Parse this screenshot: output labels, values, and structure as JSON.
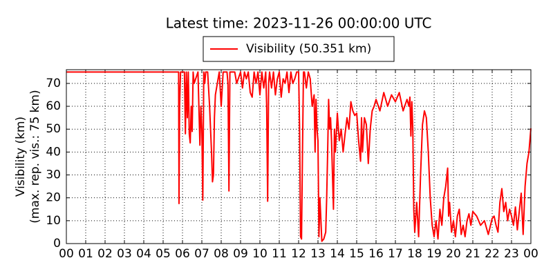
{
  "chart_data": {
    "type": "line",
    "title": "Latest time: 2023-11-26 00:00:00 UTC",
    "y_label_lines": [
      "Visibility (km)",
      "(max. rep. vis.: 75 km)"
    ],
    "legend_position": "upper center outside",
    "grid": true,
    "xlim": [
      0,
      24
    ],
    "ylim": [
      0,
      76
    ],
    "xticks": [
      {
        "value": 0,
        "label": "00"
      },
      {
        "value": 1,
        "label": "01"
      },
      {
        "value": 2,
        "label": "02"
      },
      {
        "value": 3,
        "label": "03"
      },
      {
        "value": 4,
        "label": "04"
      },
      {
        "value": 5,
        "label": "05"
      },
      {
        "value": 6,
        "label": "06"
      },
      {
        "value": 7,
        "label": "07"
      },
      {
        "value": 8,
        "label": "08"
      },
      {
        "value": 9,
        "label": "09"
      },
      {
        "value": 10,
        "label": "10"
      },
      {
        "value": 11,
        "label": "11"
      },
      {
        "value": 12,
        "label": "12"
      },
      {
        "value": 13,
        "label": "13"
      },
      {
        "value": 14,
        "label": "14"
      },
      {
        "value": 15,
        "label": "15"
      },
      {
        "value": 16,
        "label": "16"
      },
      {
        "value": 17,
        "label": "17"
      },
      {
        "value": 18,
        "label": "18"
      },
      {
        "value": 19,
        "label": "19"
      },
      {
        "value": 20,
        "label": "20"
      },
      {
        "value": 21,
        "label": "21"
      },
      {
        "value": 22,
        "label": "22"
      },
      {
        "value": 23,
        "label": "23"
      },
      {
        "value": 24,
        "label": "00"
      }
    ],
    "yticks": [
      0,
      10,
      20,
      30,
      40,
      50,
      60,
      70
    ],
    "x": [
      0,
      5.8,
      5.82,
      5.85,
      5.9,
      6.1,
      6.15,
      6.2,
      6.25,
      6.3,
      6.35,
      6.4,
      6.45,
      6.5,
      6.55,
      6.6,
      6.8,
      6.9,
      6.95,
      7.0,
      7.05,
      7.1,
      7.15,
      7.2,
      7.3,
      7.4,
      7.5,
      7.55,
      7.6,
      7.65,
      7.7,
      7.8,
      7.9,
      8.0,
      8.1,
      8.3,
      8.35,
      8.4,
      8.45,
      8.5,
      8.7,
      8.8,
      9.0,
      9.1,
      9.2,
      9.3,
      9.4,
      9.5,
      9.6,
      9.7,
      9.8,
      9.9,
      10.0,
      10.1,
      10.2,
      10.3,
      10.35,
      10.4,
      10.45,
      10.5,
      10.6,
      10.7,
      10.8,
      10.9,
      11.0,
      11.1,
      11.2,
      11.3,
      11.4,
      11.5,
      11.6,
      11.7,
      11.8,
      11.9,
      12.0,
      12.05,
      12.1,
      12.15,
      12.2,
      12.25,
      12.3,
      12.4,
      12.5,
      12.6,
      12.7,
      12.8,
      12.85,
      12.9,
      12.95,
      13.0,
      13.05,
      13.1,
      13.2,
      13.3,
      13.4,
      13.45,
      13.5,
      13.55,
      13.6,
      13.65,
      13.7,
      13.75,
      13.8,
      13.85,
      13.9,
      14.0,
      14.1,
      14.2,
      14.3,
      14.4,
      14.5,
      14.6,
      14.7,
      14.8,
      14.9,
      15.0,
      15.1,
      15.2,
      15.25,
      15.3,
      15.4,
      15.5,
      15.6,
      15.7,
      15.8,
      15.9,
      16.0,
      16.2,
      16.4,
      16.6,
      16.8,
      17.0,
      17.2,
      17.4,
      17.6,
      17.7,
      17.75,
      17.8,
      17.85,
      17.9,
      17.95,
      18.0,
      18.1,
      18.2,
      18.3,
      18.4,
      18.5,
      18.6,
      18.7,
      18.8,
      18.9,
      19.0,
      19.1,
      19.2,
      19.3,
      19.4,
      19.5,
      19.6,
      19.7,
      19.75,
      19.8,
      19.9,
      20.0,
      20.1,
      20.2,
      20.3,
      20.4,
      20.5,
      20.6,
      20.7,
      20.8,
      20.9,
      21.0,
      21.2,
      21.4,
      21.6,
      21.8,
      22.0,
      22.1,
      22.2,
      22.3,
      22.4,
      22.5,
      22.6,
      22.7,
      22.8,
      22.9,
      23.0,
      23.1,
      23.2,
      23.3,
      23.4,
      23.5,
      23.6,
      23.7,
      23.8,
      23.9,
      24.0
    ],
    "series": [
      {
        "name": "Visibility (50.351 km)",
        "color": "#ff0000",
        "values": [
          75,
          75,
          17.5,
          60,
          75,
          75,
          48,
          75,
          55,
          75,
          48,
          44,
          60,
          49,
          75,
          70,
          75,
          43,
          60,
          50,
          19,
          75,
          70,
          75,
          75,
          60,
          40,
          27,
          30,
          55,
          65,
          70,
          75,
          60,
          75,
          75,
          70,
          23,
          75,
          75,
          75,
          70,
          75,
          68,
          75,
          72,
          75,
          66,
          64,
          75,
          70,
          75,
          65,
          75,
          68,
          75,
          60,
          18.5,
          70,
          75,
          68,
          75,
          65,
          72,
          75,
          64,
          72,
          70,
          75,
          66,
          75,
          70,
          72,
          75,
          75,
          50,
          3,
          2,
          40,
          75,
          75,
          68,
          75,
          72,
          60,
          65,
          40,
          63,
          50,
          45,
          3,
          20,
          1,
          2,
          5,
          20,
          40,
          63,
          50,
          55,
          45,
          30,
          15,
          50,
          40,
          57,
          45,
          50,
          40,
          48,
          55,
          50,
          62,
          58,
          56,
          57,
          45,
          36,
          55,
          40,
          55,
          52,
          35,
          50,
          58,
          60,
          63,
          58,
          66,
          60,
          65,
          62,
          66,
          58,
          63,
          60,
          64,
          47,
          62,
          50,
          15,
          5,
          18,
          3,
          30,
          52,
          58,
          55,
          40,
          20,
          8,
          3,
          10,
          2,
          15,
          8,
          20,
          25,
          33,
          12,
          18,
          5,
          10,
          3,
          12,
          15,
          4,
          8,
          3,
          10,
          13,
          8,
          14,
          12,
          8,
          10,
          4,
          11,
          12,
          8,
          5,
          18,
          24,
          14,
          18,
          10,
          15,
          12,
          8,
          16,
          6,
          14,
          22,
          4,
          25,
          35,
          40,
          50.351
        ]
      }
    ]
  }
}
